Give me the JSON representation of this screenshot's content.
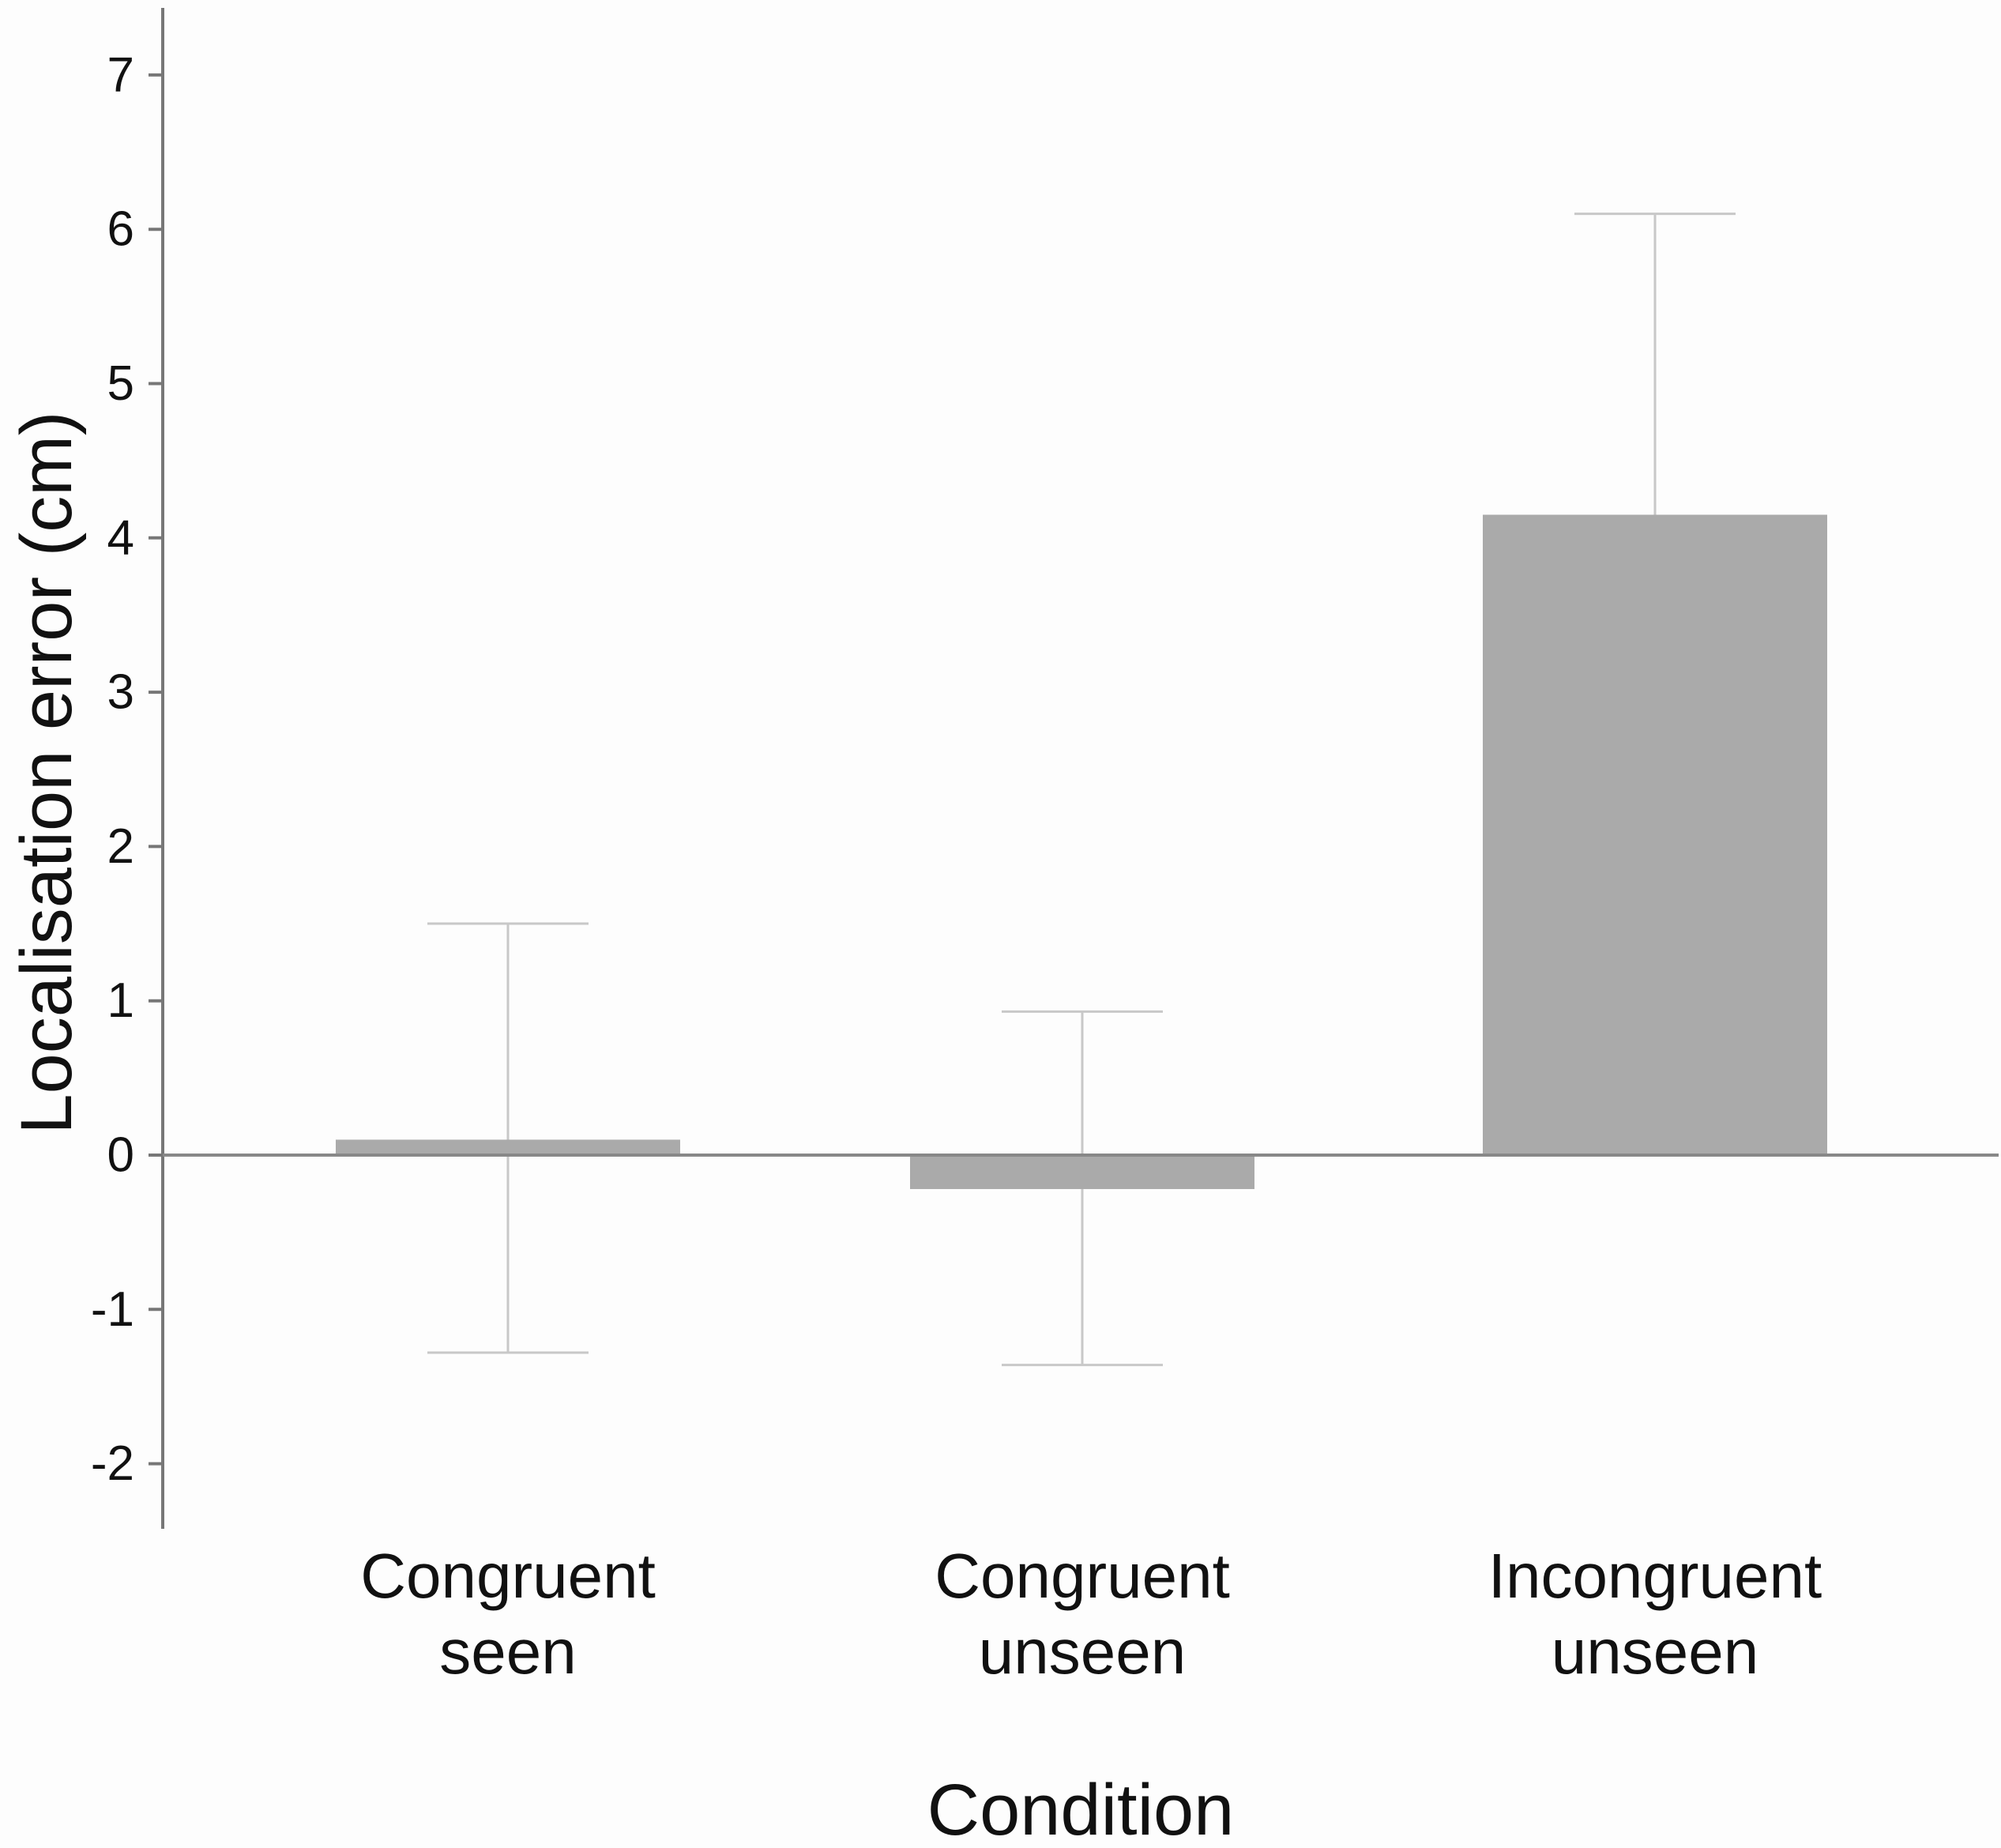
{
  "chart_data": {
    "type": "bar",
    "categories": [
      [
        "Congruent",
        "seen"
      ],
      [
        "Congruent",
        "unseen"
      ],
      [
        "Incongruent",
        "unseen"
      ]
    ],
    "values": [
      0.1,
      -0.22,
      4.15
    ],
    "error_bars": [
      {
        "upper": 1.5,
        "lower": -1.28
      },
      {
        "upper": 0.93,
        "lower": -1.36
      },
      {
        "upper": 6.1,
        "lower": null
      }
    ],
    "title": "",
    "xlabel": "Condition",
    "ylabel": "Localisation error (cm)",
    "ylim": [
      -2.4,
      7.4
    ],
    "yticks": [
      7,
      6,
      5,
      4,
      3,
      2,
      1,
      0,
      -1,
      -2
    ],
    "ytick_labels": [
      "7",
      "6",
      "5",
      "4",
      "3",
      "2",
      "1",
      "0",
      "-1",
      "-2"
    ],
    "grid": false,
    "legend": null,
    "colors": {
      "bar": "#aaaaaa",
      "error_bar": "#c8c8c8",
      "axis": "#777777",
      "zero_line": "#888888",
      "text": "#111111",
      "background": "#fdfdfd"
    }
  }
}
